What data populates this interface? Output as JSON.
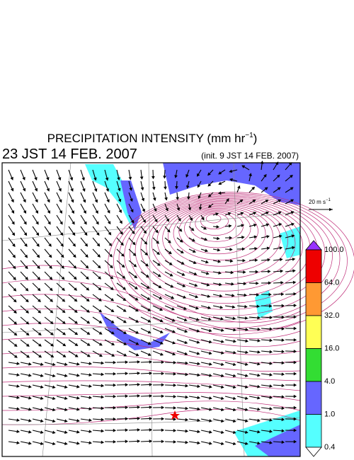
{
  "header": {
    "title": "PRECIPITATION INTENSITY (mm hr",
    "title_sup": "−1",
    "title_end": ")",
    "time": "23 JST 14 FEB. 2007",
    "init": "(init. 9 JST 14 FEB. 2007)"
  },
  "scale": {
    "label": "20 m s",
    "sup": "−1"
  },
  "colorbar": {
    "levels": [
      "0.4",
      "1.0",
      "4.0",
      "16.0",
      "32.0",
      "64.0",
      "100.0"
    ]
  }
}
